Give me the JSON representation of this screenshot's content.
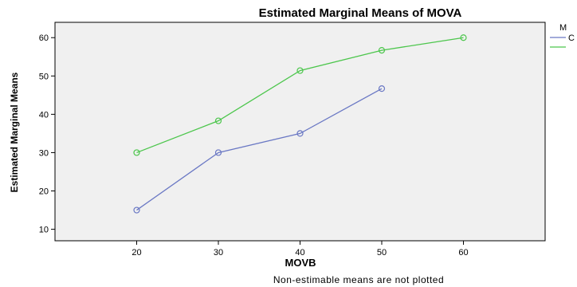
{
  "chart_data": {
    "type": "line",
    "title": "Estimated Marginal Means of MOVA",
    "xlabel": "MOVB",
    "ylabel": "Estimated Marginal Means",
    "footnote": "Non-estimable means are not plotted",
    "legend_title": "M",
    "legend_placement": "top-right (cropped)",
    "x": [
      20,
      30,
      40,
      50,
      60
    ],
    "xlim": [
      10,
      70
    ],
    "ylim": [
      7,
      64
    ],
    "yticks": [
      10,
      20,
      30,
      40,
      50,
      60
    ],
    "grid": false,
    "plot_background": "#f0f0f0",
    "series": [
      {
        "name": "C",
        "color": "#6a78c4",
        "values": [
          15,
          30,
          35,
          46.7,
          null
        ]
      },
      {
        "name": "",
        "color": "#4cc64c",
        "values": [
          30,
          38.3,
          51.4,
          56.7,
          60
        ]
      }
    ]
  }
}
